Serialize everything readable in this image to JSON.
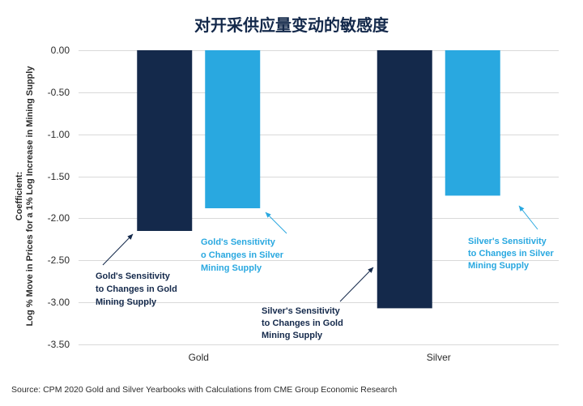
{
  "chart_data": {
    "type": "bar",
    "title": "对开采供应量变动的敏感度",
    "categories": [
      "Gold",
      "Silver"
    ],
    "series": [
      {
        "color": "#14294B",
        "values": [
          -2.15,
          -3.07
        ]
      },
      {
        "color": "#29A8E0",
        "values": [
          -1.88,
          -1.73
        ]
      }
    ],
    "ylabel_lines": [
      "Coefficient:",
      "Log % Move in Prices for a 1% Log Increase in Mining Supply"
    ],
    "ylim": [
      -3.5,
      0
    ],
    "yticks": [
      "0.00",
      "-0.50",
      "-1.00",
      "-1.50",
      "-2.00",
      "-2.50",
      "-3.00",
      "-3.50"
    ],
    "grid": true,
    "annotations": [
      {
        "category_index": 0,
        "series_index": 0,
        "lines": [
          "Gold's Sensitivity",
          "to Changes in Gold",
          "Mining Supply"
        ]
      },
      {
        "category_index": 0,
        "series_index": 1,
        "lines": [
          "Gold's Sensitivity",
          "o Changes in Silver",
          "Mining Supply"
        ]
      },
      {
        "category_index": 1,
        "series_index": 0,
        "lines": [
          "Silver's Sensitivity",
          "to Changes in Gold",
          "Mining Supply"
        ]
      },
      {
        "category_index": 1,
        "series_index": 1,
        "lines": [
          "Silver's Sensitivity",
          "to Changes in Silver",
          "Mining Supply"
        ]
      }
    ],
    "source": "Source: CPM 2020 Gold and Silver Yearbooks with Calculations from CME Group Economic Research"
  },
  "colors": {
    "title": "#14294B",
    "text": "#2B2B2B",
    "grid": "#D9D9D9"
  }
}
